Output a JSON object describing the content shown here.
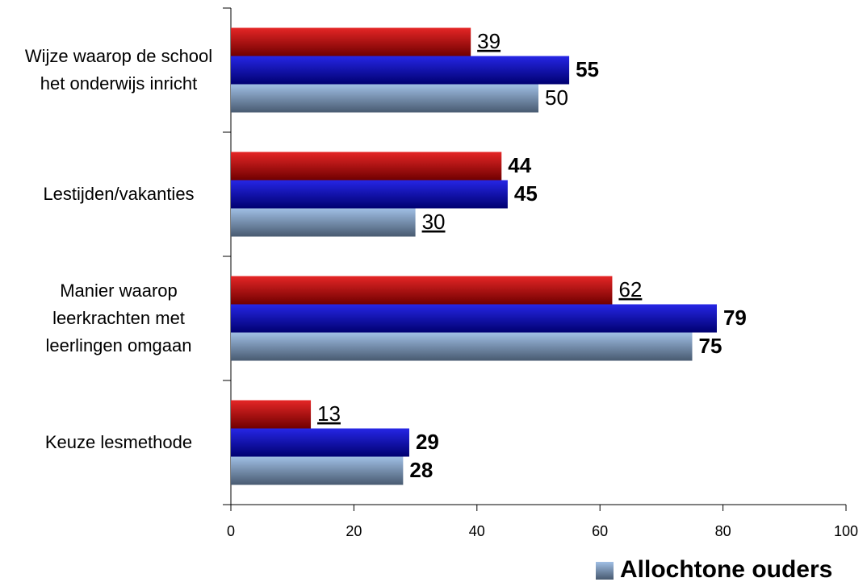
{
  "chart_data": {
    "type": "bar",
    "orientation": "horizontal",
    "categories": [
      "Wijze waarop de school het onderwijs inricht",
      "Lestijden/vakanties",
      "Manier waarop leerkrachten met leerlingen omgaan",
      "Keuze lesmethode"
    ],
    "series": [
      {
        "color": "#e00000",
        "values": [
          39,
          44,
          62,
          13
        ],
        "label_styles": [
          "underline",
          "bold",
          "underline",
          "underline"
        ]
      },
      {
        "color": "#0000e0",
        "values": [
          55,
          45,
          79,
          29
        ],
        "label_styles": [
          "bold",
          "bold",
          "bold",
          "bold"
        ]
      },
      {
        "name": "Allochtone ouders",
        "color": "#8fb4e0",
        "values": [
          50,
          30,
          75,
          28
        ],
        "label_styles": [
          "normal",
          "underline",
          "bold",
          "bold"
        ]
      }
    ],
    "xlim": [
      0,
      100
    ],
    "xticks": [
      0,
      20,
      40,
      60,
      80,
      100
    ],
    "legend": "bottom-right"
  }
}
